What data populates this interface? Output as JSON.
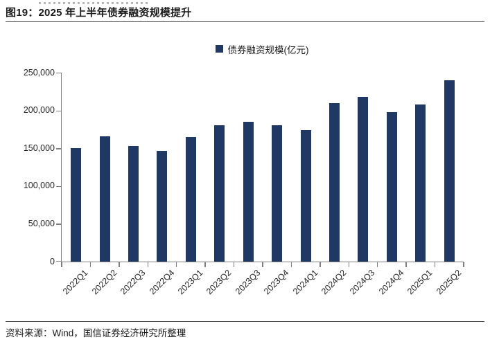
{
  "figure": {
    "title": "图19：2025 年上半年债券融资规模提升",
    "legend_label": "债券融资规模(亿元)",
    "source_note": "资料来源：Wind，国信证券经济研究所整理"
  },
  "chart_data": {
    "type": "bar",
    "title": "2025 年上半年债券融资规模提升",
    "series_name": "债券融资规模(亿元)",
    "categories": [
      "2022Q1",
      "2022Q2",
      "2022Q3",
      "2022Q4",
      "2023Q1",
      "2023Q2",
      "2023Q3",
      "2023Q4",
      "2024Q1",
      "2024Q2",
      "2024Q3",
      "2024Q4",
      "2025Q1",
      "2025Q2"
    ],
    "values": [
      150000,
      166000,
      153000,
      147000,
      165000,
      180000,
      185000,
      180000,
      174000,
      210000,
      218000,
      198000,
      208000,
      240000
    ],
    "xlabel": "",
    "ylabel": "",
    "ylim": [
      0,
      250000
    ],
    "ytick_interval": 50000,
    "ytick_labels": [
      "0",
      "50,000",
      "100,000",
      "150,000",
      "200,000",
      "250,000"
    ],
    "grid": false,
    "legend_position": "top-center",
    "bar_color": "#1f3864",
    "axis_color": "#7f7f7f"
  }
}
